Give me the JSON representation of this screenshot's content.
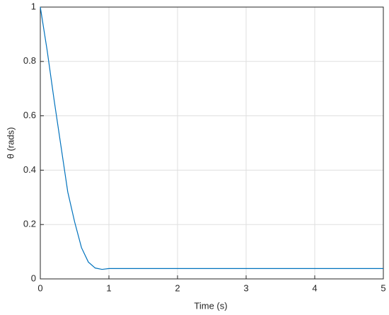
{
  "chart_data": {
    "type": "line",
    "x_label": "Time (s)",
    "y_label": "θ (rads)",
    "x": [
      0,
      0.1,
      0.2,
      0.3,
      0.4,
      0.5,
      0.6,
      0.7,
      0.8,
      0.9,
      1.0,
      1.5,
      2,
      2.5,
      3,
      3.5,
      4,
      4.5,
      5
    ],
    "series": [
      {
        "name": "θ",
        "color": "#0072bd",
        "values": [
          1,
          0.84,
          0.66,
          0.49,
          0.32,
          0.21,
          0.115,
          0.062,
          0.04,
          0.035,
          0.038,
          0.038,
          0.038,
          0.038,
          0.038,
          0.038,
          0.038,
          0.038,
          0.038
        ]
      }
    ],
    "xlim": [
      0,
      5
    ],
    "xticks": [
      0,
      1,
      2,
      3,
      4,
      5
    ],
    "ylim": [
      0,
      1
    ],
    "yticks": [
      0,
      0.2,
      0.4,
      0.6,
      0.8,
      1
    ],
    "grid": true
  }
}
